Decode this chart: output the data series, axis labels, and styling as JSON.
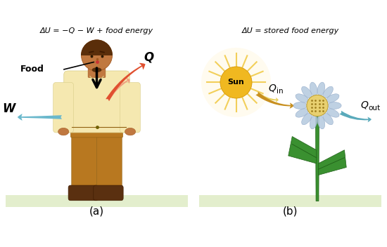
{
  "title_a": "ΔU = −Q − W + food energy",
  "title_b": "ΔU = stored food energy",
  "label_a": "(a)",
  "label_b": "(b)",
  "food_label": "Food",
  "W_label": "W",
  "Q_label": "Q",
  "Sun_label": "Sun",
  "bg_color": "#ffffff",
  "ground_color": "#d8e8b8",
  "skin_color": "#c07840",
  "skin_dark": "#a05820",
  "hair_color": "#5a2e0a",
  "shirt_color": "#f5e8b0",
  "shirt_edge": "#d8cc88",
  "pants_color": "#b87820",
  "pants_edge": "#906010",
  "shoe_color": "#5a3010",
  "Q_arrow_color": "#e05030",
  "W_arrow_color": "#6ab8cc",
  "Qin_arrow_color": "#c89020",
  "Qout_arrow_color": "#5aaabb",
  "sun_color": "#f0b820",
  "sun_ray_color": "#f0c840",
  "petal_color": "#b8cce0",
  "petal_edge": "#90a8c8",
  "stem_color": "#3a9030",
  "leaf_color": "#3a9030"
}
